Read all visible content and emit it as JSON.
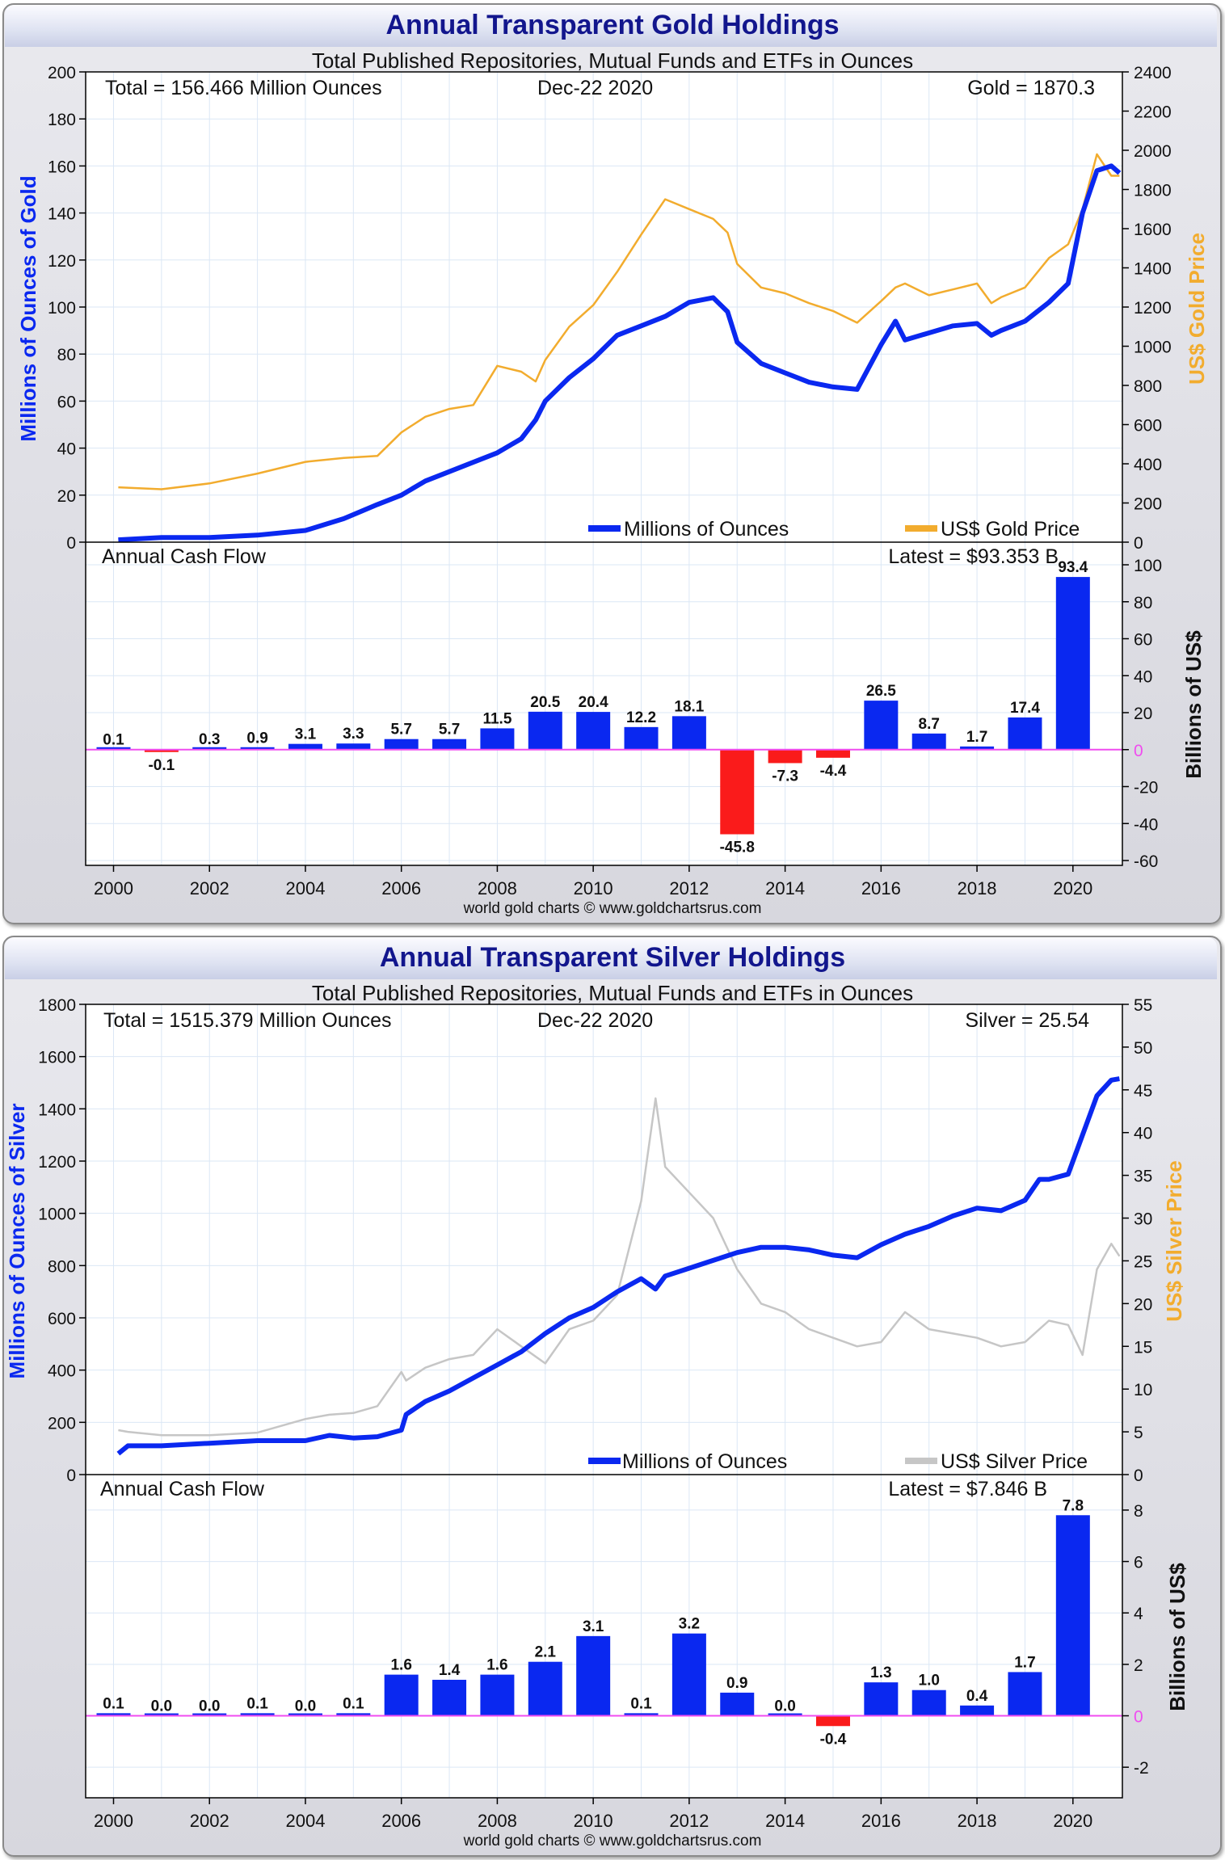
{
  "colors": {
    "blue": "#0a28f0",
    "gold": "#f2ac2e",
    "silver": "#c6c6c6",
    "red": "#fa1b1b",
    "title": "#12168d",
    "zero_line": "#f04cf0"
  },
  "panels": [
    {
      "title": "Annual Transparent Gold Holdings",
      "subtitle": "Total Published Repositories, Mutual Funds and ETFs in Ounces",
      "total_text": "Total = 156.466 Million Ounces",
      "date_text": "Dec-22  2020",
      "price_text": "Gold = 1870.3",
      "left_axis_label": "Millions of Ounces of Gold",
      "right_axis_label": "US$ Gold Price",
      "legend_holdings": "Millions of Ounces",
      "legend_price": "US$ Gold Price",
      "cashflow_label": "Annual Cash Flow",
      "latest_text": "Latest = $93.353 B",
      "cashflow_axis_label": "Billions of US$",
      "credit": "world gold charts © www.goldchartsrus.com"
    },
    {
      "title": "Annual Transparent Silver Holdings",
      "subtitle": "Total Published Repositories, Mutual Funds and ETFs in Ounces",
      "total_text": "Total = 1515.379 Million Ounces",
      "date_text": "Dec-22  2020",
      "price_text": "Silver = 25.54",
      "left_axis_label": "Millions of Ounces of Silver",
      "right_axis_label": "US$ Silver Price",
      "legend_holdings": "Millions of Ounces",
      "legend_price": "US$ Silver Price",
      "cashflow_label": "Annual Cash Flow",
      "latest_text": "Latest = $7.846 B",
      "cashflow_axis_label": "Billions of US$",
      "credit": "world gold charts © www.goldchartsrus.com"
    }
  ],
  "chart_data": [
    {
      "type": "line",
      "title": "Annual Transparent Gold Holdings",
      "subtitle": "Total Published Repositories, Mutual Funds and ETFs in Ounces",
      "ylabel": "Millions of Ounces of Gold",
      "y2label": "US$ Gold Price",
      "ylim": [
        0,
        200
      ],
      "y2lim": [
        0,
        2400
      ],
      "y_ticks": [
        0,
        20,
        40,
        60,
        80,
        100,
        120,
        140,
        160,
        180,
        200
      ],
      "y2_ticks": [
        0,
        200,
        400,
        600,
        800,
        1000,
        1200,
        1400,
        1600,
        1800,
        2000,
        2200,
        2400
      ],
      "x": [
        2000.1,
        2001,
        2002,
        2003,
        2004,
        2004.8,
        2005.5,
        2006,
        2006.5,
        2007,
        2007.5,
        2008,
        2008.5,
        2008.8,
        2009,
        2009.5,
        2010,
        2010.5,
        2011,
        2011.5,
        2012,
        2012.5,
        2012.8,
        2013,
        2013.5,
        2014,
        2014.5,
        2015,
        2015.5,
        2016,
        2016.3,
        2016.5,
        2017,
        2017.5,
        2018,
        2018.3,
        2018.5,
        2019,
        2019.5,
        2019.9,
        2020.2,
        2020.5,
        2020.8,
        2020.97
      ],
      "series": [
        {
          "name": "Millions of Ounces",
          "color": "#0a28f0",
          "axis": "left",
          "values": [
            1,
            2,
            2,
            3,
            5,
            10,
            16,
            20,
            26,
            30,
            34,
            38,
            44,
            52,
            60,
            70,
            78,
            88,
            92,
            96,
            102,
            104,
            98,
            85,
            76,
            72,
            68,
            66,
            65,
            84,
            94,
            86,
            89,
            92,
            93,
            88,
            90,
            94,
            102,
            110,
            140,
            158,
            160,
            157
          ]
        },
        {
          "name": "US$ Gold Price",
          "color": "#f2ac2e",
          "axis": "right",
          "values": [
            280,
            270,
            300,
            350,
            410,
            430,
            440,
            560,
            640,
            680,
            700,
            900,
            870,
            820,
            930,
            1100,
            1210,
            1380,
            1570,
            1750,
            1700,
            1650,
            1580,
            1420,
            1300,
            1270,
            1220,
            1180,
            1120,
            1230,
            1300,
            1320,
            1260,
            1290,
            1320,
            1220,
            1250,
            1300,
            1450,
            1520,
            1700,
            1980,
            1870,
            1870
          ]
        }
      ]
    },
    {
      "type": "bar",
      "title": "Annual Cash Flow",
      "ylabel": "Billions of US$",
      "ylim": [
        -60,
        100
      ],
      "y_ticks": [
        -60,
        -40,
        -20,
        0,
        20,
        40,
        60,
        80,
        100
      ],
      "categories": [
        "2000",
        "2001",
        "2002",
        "2003",
        "2004",
        "2005",
        "2006",
        "2007",
        "2008",
        "2009",
        "2010",
        "2011",
        "2012",
        "2013",
        "2014",
        "2015",
        "2016",
        "2017",
        "2018",
        "2019",
        "2020"
      ],
      "values": [
        0.1,
        -0.1,
        0.3,
        0.9,
        3.1,
        3.3,
        5.7,
        5.7,
        11.5,
        20.5,
        20.4,
        12.2,
        18.1,
        -45.8,
        -7.3,
        -4.4,
        26.5,
        8.7,
        1.7,
        17.4,
        93.4
      ],
      "labels": [
        "0.1",
        "-0.1",
        "0.3",
        "0.9",
        "3.1",
        "3.3",
        "5.7",
        "5.7",
        "11.5",
        "20.5",
        "20.4",
        "12.2",
        "18.1",
        "-45.8",
        "-7.3",
        "-4.4",
        "26.5",
        "8.7",
        "1.7",
        "17.4",
        "93.4"
      ],
      "x_ticks": [
        "2000",
        "2002",
        "2004",
        "2006",
        "2008",
        "2010",
        "2012",
        "2014",
        "2016",
        "2018",
        "2020"
      ]
    },
    {
      "type": "line",
      "title": "Annual Transparent Silver Holdings",
      "subtitle": "Total Published Repositories, Mutual Funds and ETFs in Ounces",
      "ylabel": "Millions of Ounces of Silver",
      "y2label": "US$ Silver Price",
      "ylim": [
        0,
        1800
      ],
      "y2lim": [
        0,
        55
      ],
      "y_ticks": [
        0,
        200,
        400,
        600,
        800,
        1000,
        1200,
        1400,
        1600,
        1800
      ],
      "y2_ticks": [
        0,
        5,
        10,
        15,
        20,
        25,
        30,
        35,
        40,
        45,
        50,
        55
      ],
      "x": [
        2000.1,
        2000.3,
        2001,
        2002,
        2003,
        2004,
        2004.5,
        2005,
        2005.5,
        2006,
        2006.1,
        2006.5,
        2007,
        2007.5,
        2008,
        2008.5,
        2009,
        2009.5,
        2010,
        2010.5,
        2011,
        2011.3,
        2011.5,
        2012,
        2012.5,
        2013,
        2013.5,
        2014,
        2014.5,
        2015,
        2015.5,
        2016,
        2016.5,
        2017,
        2017.5,
        2018,
        2018.5,
        2019,
        2019.3,
        2019.5,
        2019.9,
        2020.2,
        2020.5,
        2020.8,
        2020.97
      ],
      "series": [
        {
          "name": "Millions of Ounces",
          "color": "#0a28f0",
          "axis": "left",
          "values": [
            80,
            110,
            110,
            120,
            130,
            130,
            150,
            140,
            145,
            170,
            230,
            280,
            320,
            370,
            420,
            470,
            540,
            600,
            640,
            700,
            750,
            710,
            760,
            790,
            820,
            850,
            870,
            870,
            860,
            840,
            830,
            880,
            920,
            950,
            990,
            1020,
            1010,
            1050,
            1130,
            1130,
            1150,
            1300,
            1450,
            1510,
            1515
          ]
        },
        {
          "name": "US$ Silver Price",
          "color": "#c6c6c6",
          "axis": "right",
          "values": [
            5.2,
            5.0,
            4.6,
            4.6,
            4.9,
            6.5,
            7.0,
            7.2,
            8.0,
            12.0,
            11.0,
            12.5,
            13.5,
            14.0,
            17.0,
            15.0,
            13.0,
            17.0,
            18.0,
            21.0,
            32.0,
            44.0,
            36.0,
            33.0,
            30.0,
            24.0,
            20.0,
            19.0,
            17.0,
            16.0,
            15.0,
            15.5,
            19.0,
            17.0,
            16.5,
            16.0,
            15.0,
            15.5,
            17.0,
            18.0,
            17.5,
            14.0,
            24.0,
            27.0,
            25.54
          ]
        }
      ]
    },
    {
      "type": "bar",
      "title": "Annual Cash Flow",
      "ylabel": "Billions of US$",
      "ylim": [
        -3,
        8.5
      ],
      "y_ticks": [
        -2,
        0,
        2,
        4,
        6,
        8
      ],
      "categories": [
        "2000",
        "2001",
        "2002",
        "2003",
        "2004",
        "2005",
        "2006",
        "2007",
        "2008",
        "2009",
        "2010",
        "2011",
        "2012",
        "2013",
        "2014",
        "2015",
        "2016",
        "2017",
        "2018",
        "2019",
        "2020"
      ],
      "values": [
        0.1,
        0.0,
        0.0,
        0.1,
        0.0,
        0.1,
        1.6,
        1.4,
        1.6,
        2.1,
        3.1,
        0.1,
        3.2,
        0.9,
        0.0,
        -0.4,
        1.3,
        1.0,
        0.4,
        1.7,
        7.8
      ],
      "labels": [
        "0.1",
        "0.0",
        "0.0",
        "0.1",
        "0.0",
        "0.1",
        "1.6",
        "1.4",
        "1.6",
        "2.1",
        "3.1",
        "0.1",
        "3.2",
        "0.9",
        "0.0",
        "-0.4",
        "1.3",
        "1.0",
        "0.4",
        "1.7",
        "7.8"
      ],
      "x_ticks": [
        "2000",
        "2002",
        "2004",
        "2006",
        "2008",
        "2010",
        "2012",
        "2014",
        "2016",
        "2018",
        "2020"
      ]
    }
  ]
}
